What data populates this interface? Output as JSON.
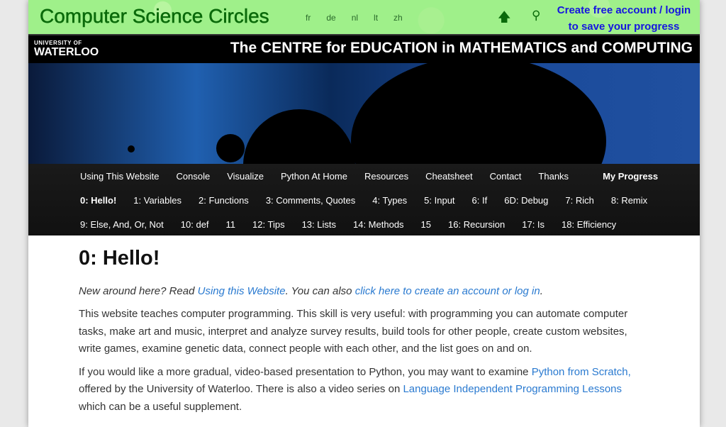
{
  "header": {
    "site_title": "Computer Science Circles",
    "languages": [
      "fr",
      "de",
      "nl",
      "lt",
      "zh"
    ],
    "account_line1": "Create free account / login",
    "account_line2": "to save your progress"
  },
  "cemc": {
    "uw_small": "UNIVERSITY OF",
    "uw_big": "WATERLOO",
    "title": "The CENTRE for EDUCATION in MATHEMATICS and COMPUTING"
  },
  "nav": {
    "row1": [
      "Using This Website",
      "Console",
      "Visualize",
      "Python At Home",
      "Resources",
      "Cheatsheet",
      "Contact",
      "Thanks"
    ],
    "my_progress": "My Progress",
    "row2": [
      "0: Hello!",
      "1: Variables",
      "2: Functions",
      "3: Comments, Quotes",
      "4: Types",
      "5: Input",
      "6: If",
      "6D: Debug",
      "7: Rich",
      "8: Remix"
    ],
    "row3": [
      "9: Else, And, Or, Not",
      "10: def",
      "11",
      "12: Tips",
      "13: Lists",
      "14: Methods",
      "15",
      "16: Recursion",
      "17: Is",
      "18: Efficiency"
    ]
  },
  "main": {
    "title": "0: Hello!",
    "intro_a": "New around here? Read ",
    "intro_link1": "Using this Website",
    "intro_b": ". You can also ",
    "intro_link2": "click here to create an account or log in",
    "intro_c": ".",
    "p1": "This website teaches computer programming. This skill is very useful: with programming you can automate computer tasks, make art and music, interpret and analyze survey results, build tools for other people, create custom websites, write games, examine genetic data, connect people with each other, and the list goes on and on.",
    "p2_a": "If you would like a more gradual, video-based presentation to Python, you may want to examine ",
    "p2_link1": "Python from Scratch,",
    "p2_b": " offered by the University of Waterloo. There is also a video series on ",
    "p2_link2": "Language Independent Programming Lessons",
    "p2_c": " which can be a useful supplement."
  }
}
